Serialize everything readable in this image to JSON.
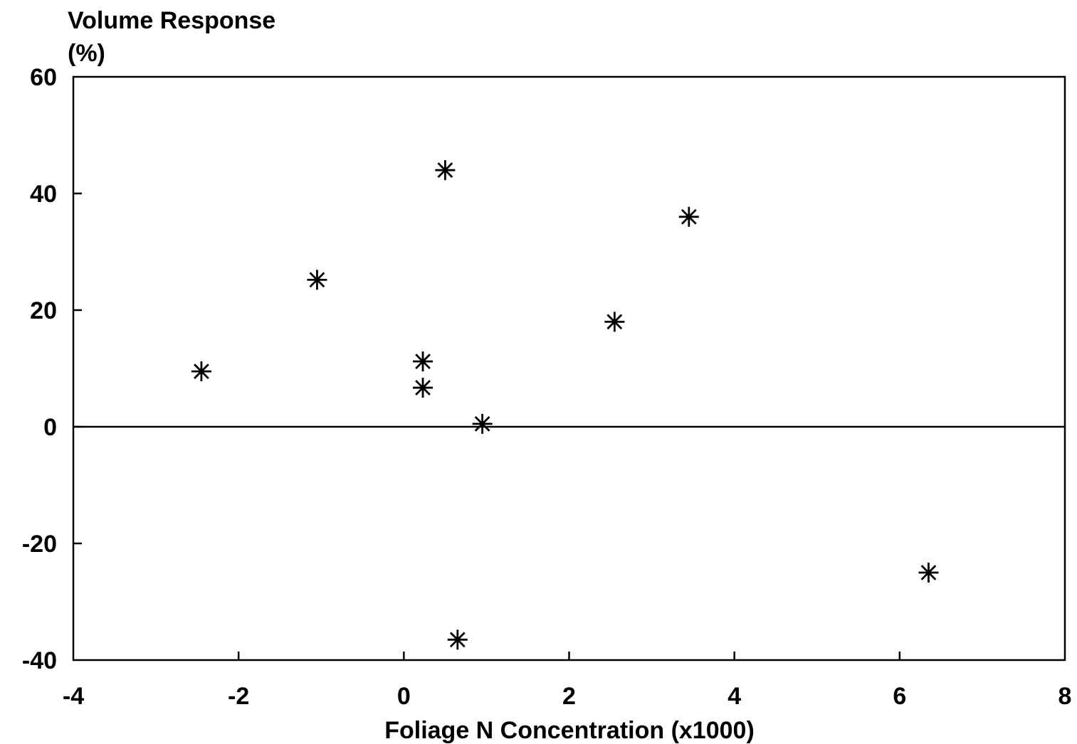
{
  "chart_data": {
    "type": "scatter",
    "title": "",
    "ylabel_line1": "Volume Response",
    "ylabel_line2": "(%)",
    "xlabel": "Foliage N Concentration (x1000)",
    "xlim": [
      -4,
      8
    ],
    "ylim": [
      -40,
      60
    ],
    "x_ticks": [
      -4,
      -2,
      0,
      2,
      4,
      6,
      8
    ],
    "y_ticks": [
      -40,
      -20,
      0,
      20,
      40,
      60
    ],
    "x_tick_labels": [
      "-4",
      "-2",
      "0",
      "2",
      "4",
      "6",
      "8"
    ],
    "y_tick_labels": [
      "-40",
      "-20",
      "0",
      "20",
      "40",
      "60"
    ],
    "reference_line_y": 0,
    "marker": "asterisk",
    "marker_color": "#000000",
    "grid": false,
    "points": [
      {
        "x": -2.45,
        "y": 9.5
      },
      {
        "x": -1.05,
        "y": 25.2
      },
      {
        "x": 0.23,
        "y": 11.2
      },
      {
        "x": 0.23,
        "y": 6.7
      },
      {
        "x": 0.5,
        "y": 44.0
      },
      {
        "x": 0.65,
        "y": -36.5
      },
      {
        "x": 0.95,
        "y": 0.5
      },
      {
        "x": 2.55,
        "y": 18.0
      },
      {
        "x": 3.45,
        "y": 36.0
      },
      {
        "x": 6.35,
        "y": -25.0
      }
    ]
  }
}
